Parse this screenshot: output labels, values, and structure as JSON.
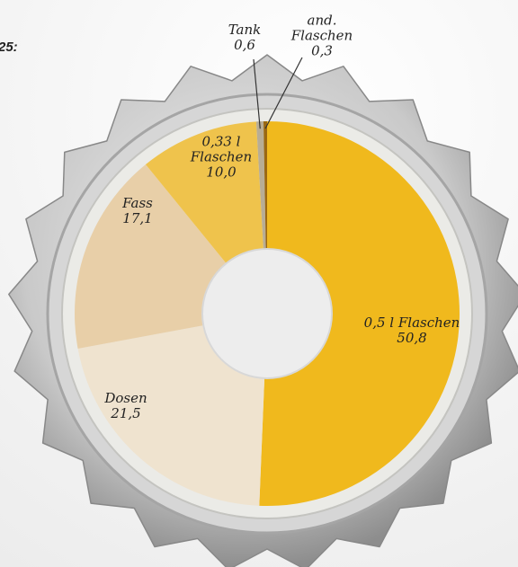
{
  "header": {
    "text": "25:"
  },
  "chart_data": {
    "type": "donut",
    "categories": [
      "0,5 l Flaschen",
      "Dosen",
      "Fass",
      "0,33 l Flaschen",
      "Tank",
      "and. Flaschen"
    ],
    "values": [
      50.8,
      21.5,
      17.1,
      10.0,
      0.6,
      0.3
    ],
    "value_labels": [
      "50,8",
      "21,5",
      "17,1",
      "10,0",
      "0,6",
      "0,3"
    ],
    "colors": [
      "#f0b91d",
      "#efe3cf",
      "#e8cfa8",
      "#efc34c",
      "#b8ad95",
      "#9a6812"
    ]
  }
}
